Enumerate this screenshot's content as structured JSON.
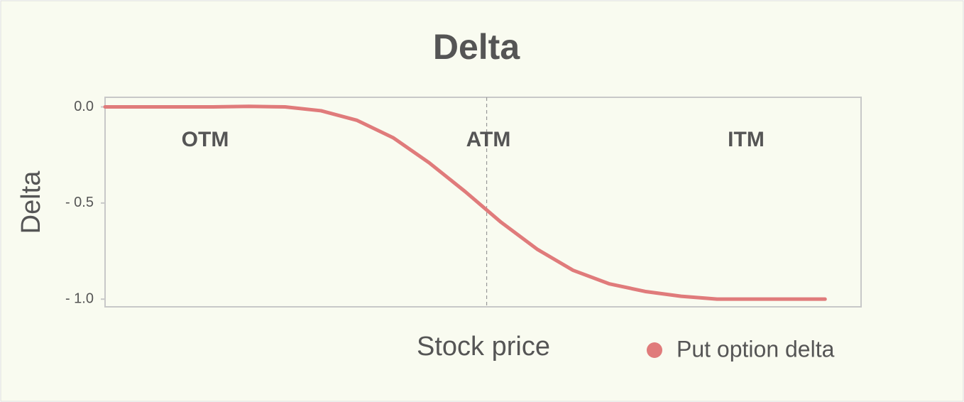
{
  "chart_data": {
    "type": "line",
    "title": "Delta",
    "x_label": "Stock price",
    "y_label": "Delta",
    "x": [
      0,
      5,
      10,
      15,
      20,
      25,
      30,
      35,
      40,
      45,
      50,
      55,
      60,
      65,
      70,
      75,
      80,
      85,
      90,
      95,
      100
    ],
    "xlim": [
      0,
      105
    ],
    "ylim": [
      -1.04,
      0.05
    ],
    "yticks": [
      {
        "value": 0,
        "label": "0.0"
      },
      {
        "value": -0.5,
        "label": "- 0.5"
      },
      {
        "value": -1,
        "label": "- 1.0"
      }
    ],
    "series": [
      {
        "name": "Put option delta",
        "color": "#e07b7b",
        "values": [
          0,
          0,
          0,
          0,
          0.003,
          0,
          -0.02,
          -0.07,
          -0.16,
          -0.29,
          -0.44,
          -0.6,
          -0.74,
          -0.85,
          -0.92,
          -0.96,
          -0.985,
          -1.0,
          -1.0,
          -1.0,
          -1.0
        ]
      }
    ],
    "vline": 53,
    "annotations": [
      "OTM",
      "ATM",
      "ITM"
    ],
    "grid": false
  }
}
